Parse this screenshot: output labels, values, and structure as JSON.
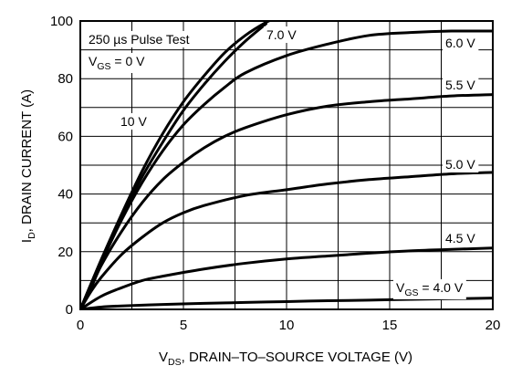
{
  "chart_data": {
    "type": "line",
    "xlabel": {
      "prefix": "V",
      "sub": "DS",
      "rest": ", DRAIN–TO–SOURCE VOLTAGE (V)"
    },
    "ylabel": {
      "prefix": "I",
      "sub": "D",
      "rest": ", DRAIN CURRENT (A)"
    },
    "xlim": [
      0,
      20
    ],
    "ylim": [
      0,
      100
    ],
    "x_ticks": [
      0,
      5,
      10,
      15,
      20
    ],
    "y_ticks": [
      0,
      20,
      40,
      60,
      80,
      100
    ],
    "grid": true,
    "annotations": {
      "line1": "250 µs Pulse Test",
      "line2": {
        "prefix": "V",
        "sub": "GS",
        "rest": " = 0 V"
      }
    },
    "series": [
      {
        "name": "V_GS = 4.0 V",
        "label": {
          "prefix": "V",
          "sub": "GS",
          "rest": " = 4.0 V"
        },
        "x": [
          0,
          1,
          2,
          4,
          6,
          8,
          10,
          12,
          14,
          16,
          18,
          20
        ],
        "y": [
          0,
          0.8,
          1.2,
          1.7,
          2.1,
          2.4,
          2.7,
          3.0,
          3.2,
          3.5,
          3.7,
          3.9
        ]
      },
      {
        "name": "4.5 V",
        "label": {
          "text": "4.5 V"
        },
        "x": [
          0,
          1,
          2,
          3,
          4,
          6,
          8,
          10,
          12,
          14,
          16,
          18,
          20
        ],
        "y": [
          0,
          4.5,
          7.5,
          10,
          11.5,
          14,
          16,
          17.5,
          18.5,
          19.5,
          20.3,
          20.8,
          21.3
        ]
      },
      {
        "name": "5.0 V",
        "label": {
          "text": "5.0 V"
        },
        "x": [
          0,
          0.5,
          1,
          2,
          3,
          4,
          5,
          6,
          8,
          10,
          12,
          14,
          16,
          18,
          20
        ],
        "y": [
          0,
          6,
          11,
          19,
          25,
          30,
          33.5,
          36,
          39.5,
          41.5,
          43.5,
          45,
          46,
          47,
          47.5
        ]
      },
      {
        "name": "5.5 V",
        "label": {
          "text": "5.5 V"
        },
        "x": [
          0,
          0.5,
          1,
          2,
          3,
          4,
          5,
          6,
          7,
          8,
          10,
          12,
          14,
          16,
          18,
          20
        ],
        "y": [
          0,
          7,
          15,
          27,
          37,
          45,
          51,
          56,
          60,
          63,
          67.5,
          70.5,
          72,
          73,
          74,
          74.5
        ]
      },
      {
        "name": "6.0 V",
        "label": {
          "text": "6.0 V"
        },
        "x": [
          0,
          1,
          2,
          3,
          4,
          5,
          6,
          7,
          8,
          10,
          12,
          14,
          16,
          18,
          20
        ],
        "y": [
          0,
          16,
          31,
          44,
          55,
          64,
          71,
          77,
          82,
          88,
          92,
          95,
          96,
          96.5,
          96.5
        ]
      },
      {
        "name": "7.0 V",
        "label": {
          "text": "7.0 V"
        },
        "x": [
          0,
          1,
          2,
          3,
          4,
          5,
          6,
          7,
          8,
          9
        ],
        "y": [
          0,
          16.5,
          32,
          46,
          58,
          69,
          78,
          86,
          93,
          99
        ]
      },
      {
        "name": "10 V",
        "label": {
          "text": "10 V"
        },
        "x": [
          0,
          1,
          2,
          3,
          4,
          5,
          6,
          7,
          8,
          9,
          9.5
        ],
        "y": [
          0,
          17,
          33,
          48,
          61,
          72,
          81,
          89,
          95,
          99.5,
          101
        ]
      }
    ]
  }
}
